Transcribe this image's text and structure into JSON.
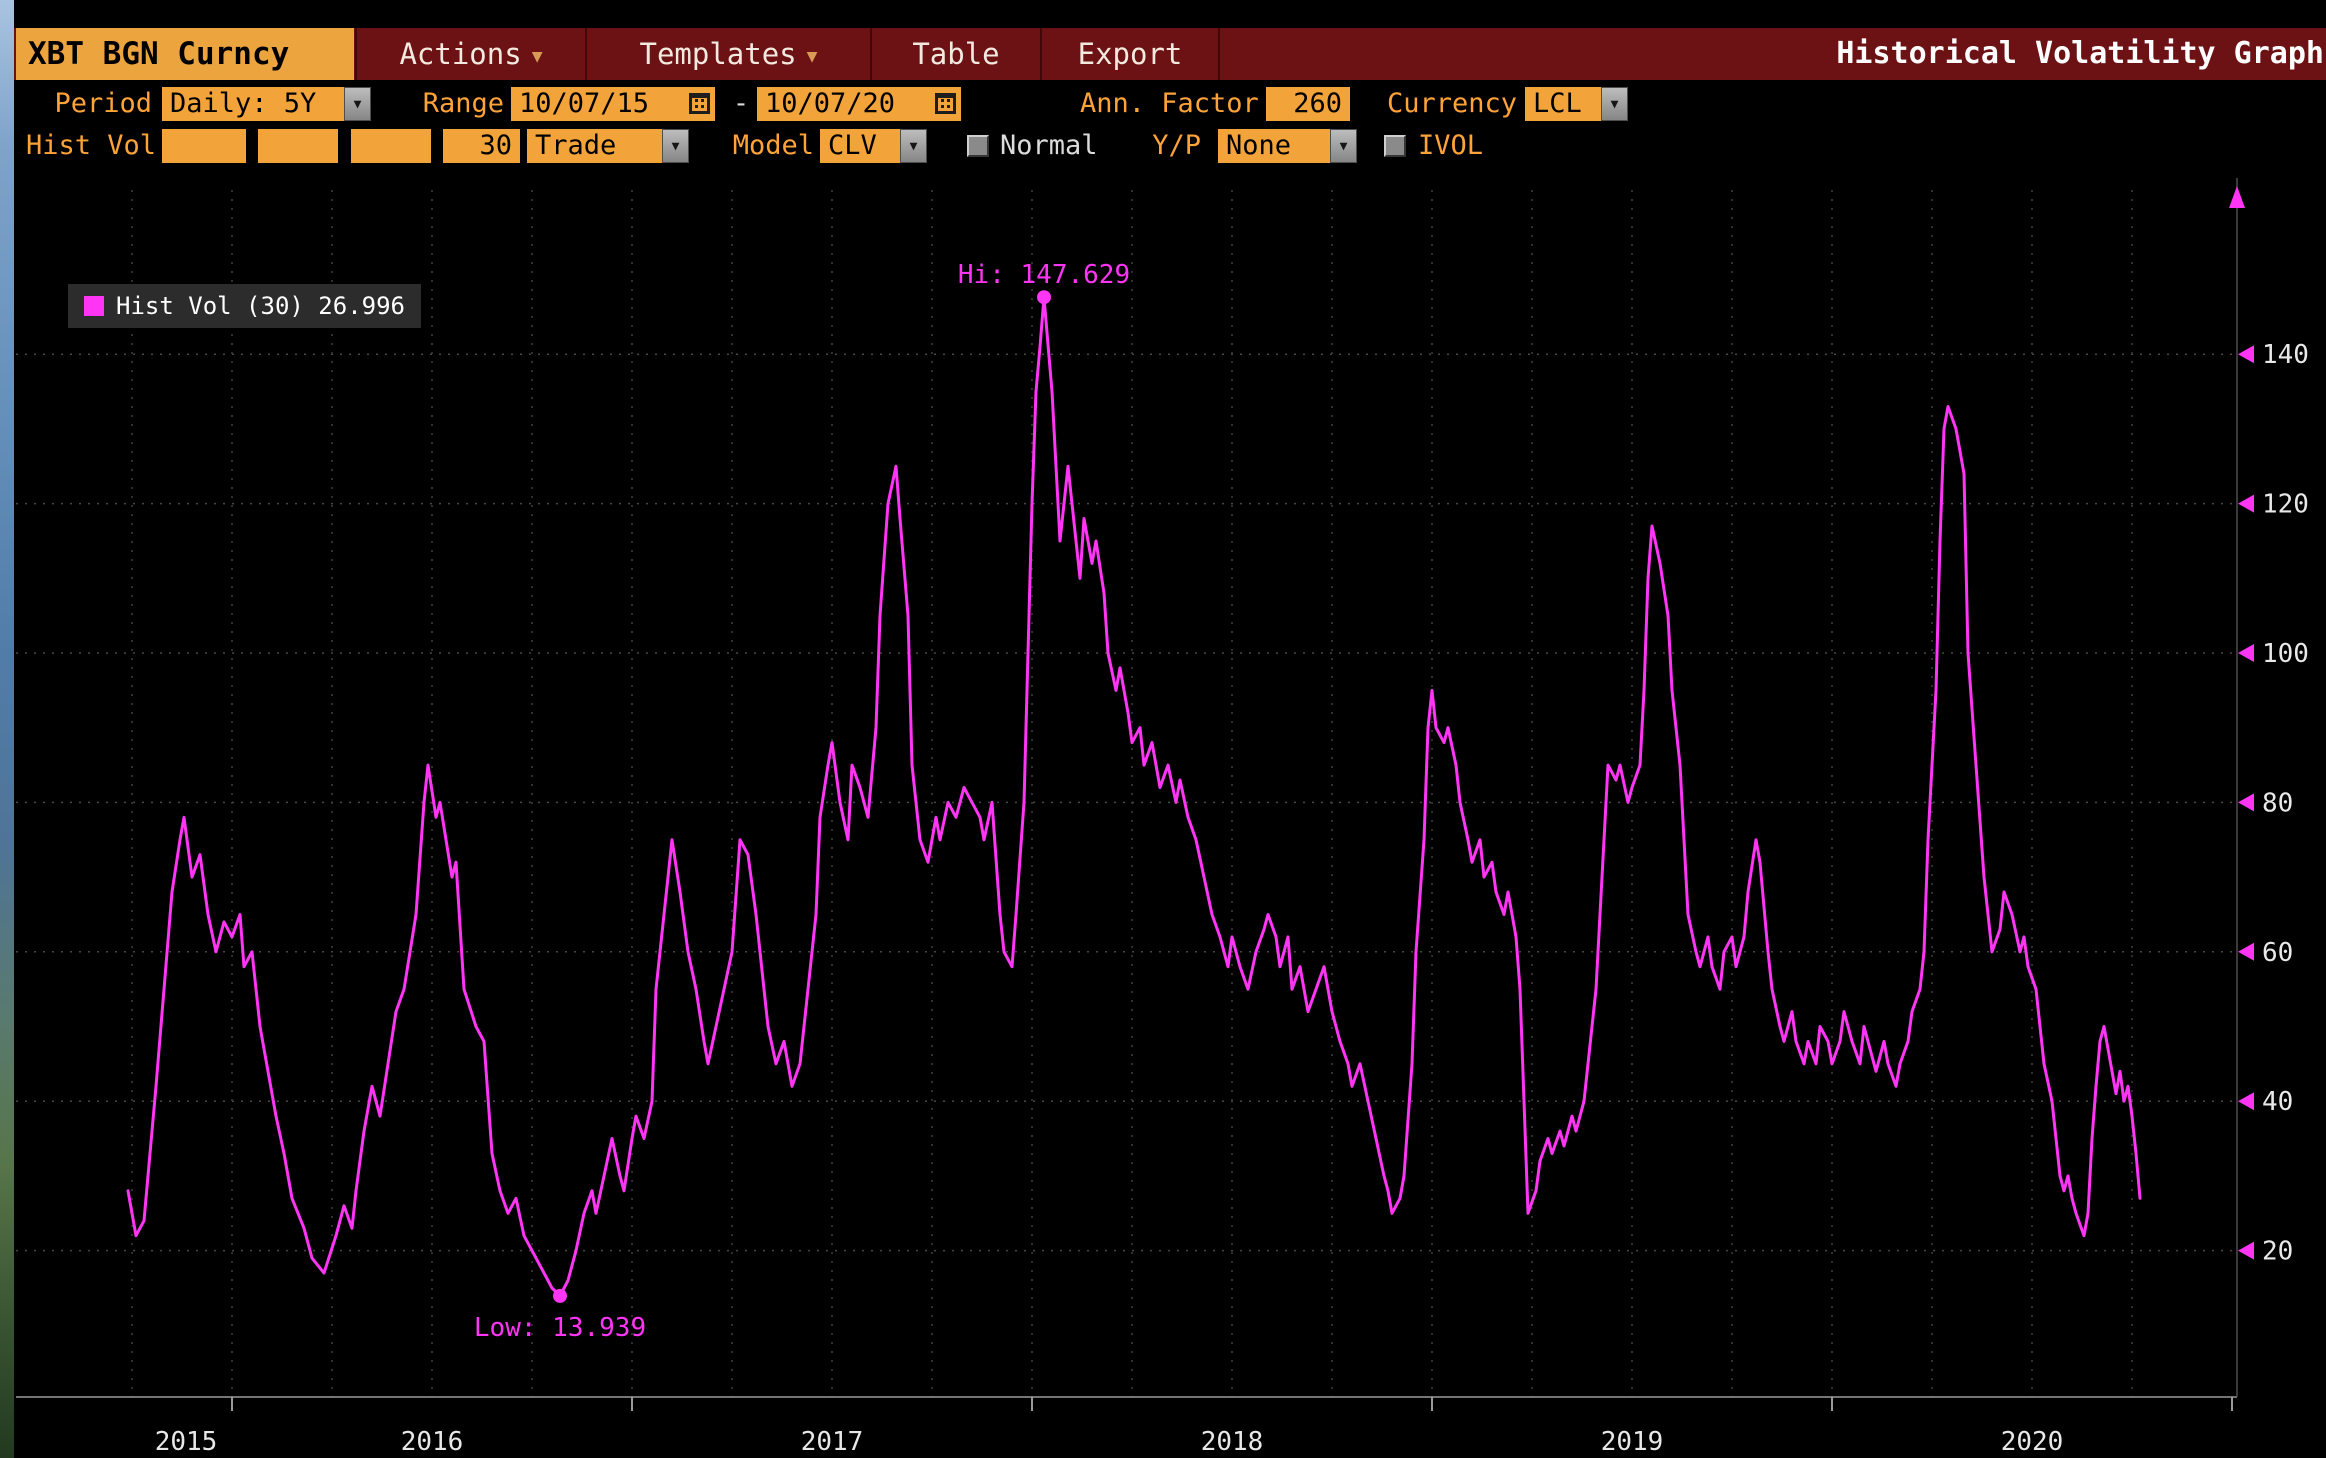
{
  "icons": {
    "caret": "▼"
  },
  "header": {
    "security": "XBT BGN Curncy",
    "menu_items": [
      {
        "label": "Actions",
        "caret": true
      },
      {
        "label": "Templates",
        "caret": true
      },
      {
        "label": "Table",
        "caret": false
      },
      {
        "label": "Export",
        "caret": false
      }
    ],
    "title": "Historical Volatility Graph"
  },
  "toolbar": {
    "period_label": "Period",
    "period_value": "Daily: 5Y",
    "range_label": "Range",
    "range_start": "10/07/15",
    "range_dash": "-",
    "range_end": "10/07/20",
    "ann_factor_label": "Ann. Factor",
    "ann_factor_value": "260",
    "currency_label": "Currency",
    "currency_value": "LCL",
    "hist_vol_label": "Hist Vol",
    "vol_window": "30",
    "price_source": "Trade",
    "model_label": "Model",
    "model_value": "CLV",
    "normal_label": "Normal",
    "yp_label": "Y/P",
    "yp_value": "None",
    "ivol_label": "IVOL"
  },
  "chart_data": {
    "type": "line",
    "title": "Historical Volatility Graph",
    "legend": "Hist Vol (30) 26.996",
    "series_name": "Hist Vol (30)",
    "last_value": 26.996,
    "line_color": "#ff35f5",
    "grid": true,
    "legend_position": "top-left",
    "ylim": [
      0,
      162
    ],
    "xlabel": "",
    "ylabel": "",
    "y_ticks": [
      20,
      40,
      60,
      80,
      100,
      120,
      140
    ],
    "x_labels": [
      {
        "label": "2015",
        "t": 2015.885
      },
      {
        "label": "2016",
        "t": 2016.5
      },
      {
        "label": "2017",
        "t": 2017.5
      },
      {
        "label": "2018",
        "t": 2018.5
      },
      {
        "label": "2019",
        "t": 2019.5
      },
      {
        "label": "2020",
        "t": 2020.5
      }
    ],
    "x_axis_tick_years": [
      2016,
      2017,
      2018,
      2019,
      2020,
      2021
    ],
    "hi": {
      "label": "Hi: 147.629",
      "t": 2018.03,
      "value": 147.629
    },
    "low": {
      "label": "Low: 13.939",
      "t": 2016.82,
      "value": 13.939
    },
    "points": [
      [
        2015.74,
        28
      ],
      [
        2015.75,
        25
      ],
      [
        2015.76,
        22
      ],
      [
        2015.78,
        24
      ],
      [
        2015.79,
        30
      ],
      [
        2015.81,
        42
      ],
      [
        2015.83,
        55
      ],
      [
        2015.85,
        68
      ],
      [
        2015.87,
        75
      ],
      [
        2015.88,
        78
      ],
      [
        2015.9,
        70
      ],
      [
        2015.92,
        73
      ],
      [
        2015.94,
        65
      ],
      [
        2015.96,
        60
      ],
      [
        2015.98,
        64
      ],
      [
        2016.0,
        62
      ],
      [
        2016.02,
        65
      ],
      [
        2016.03,
        58
      ],
      [
        2016.05,
        60
      ],
      [
        2016.07,
        50
      ],
      [
        2016.09,
        44
      ],
      [
        2016.11,
        38
      ],
      [
        2016.13,
        33
      ],
      [
        2016.15,
        27
      ],
      [
        2016.18,
        23
      ],
      [
        2016.2,
        19
      ],
      [
        2016.23,
        17
      ],
      [
        2016.26,
        22
      ],
      [
        2016.28,
        26
      ],
      [
        2016.3,
        23
      ],
      [
        2016.31,
        28
      ],
      [
        2016.33,
        36
      ],
      [
        2016.35,
        42
      ],
      [
        2016.37,
        38
      ],
      [
        2016.39,
        45
      ],
      [
        2016.41,
        52
      ],
      [
        2016.43,
        55
      ],
      [
        2016.46,
        65
      ],
      [
        2016.48,
        80
      ],
      [
        2016.49,
        85
      ],
      [
        2016.51,
        78
      ],
      [
        2016.52,
        80
      ],
      [
        2016.55,
        70
      ],
      [
        2016.56,
        72
      ],
      [
        2016.58,
        55
      ],
      [
        2016.61,
        50
      ],
      [
        2016.63,
        48
      ],
      [
        2016.65,
        33
      ],
      [
        2016.67,
        28
      ],
      [
        2016.69,
        25
      ],
      [
        2016.71,
        27
      ],
      [
        2016.73,
        22
      ],
      [
        2016.75,
        20
      ],
      [
        2016.77,
        18
      ],
      [
        2016.8,
        15
      ],
      [
        2016.82,
        13.939
      ],
      [
        2016.84,
        16
      ],
      [
        2016.86,
        20
      ],
      [
        2016.88,
        25
      ],
      [
        2016.9,
        28
      ],
      [
        2016.91,
        25
      ],
      [
        2016.93,
        30
      ],
      [
        2016.95,
        35
      ],
      [
        2016.97,
        30
      ],
      [
        2016.98,
        28
      ],
      [
        2017.0,
        35
      ],
      [
        2017.01,
        38
      ],
      [
        2017.03,
        35
      ],
      [
        2017.05,
        40
      ],
      [
        2017.06,
        55
      ],
      [
        2017.08,
        65
      ],
      [
        2017.1,
        75
      ],
      [
        2017.12,
        68
      ],
      [
        2017.14,
        60
      ],
      [
        2017.16,
        55
      ],
      [
        2017.18,
        48
      ],
      [
        2017.19,
        45
      ],
      [
        2017.21,
        50
      ],
      [
        2017.23,
        55
      ],
      [
        2017.25,
        60
      ],
      [
        2017.27,
        75
      ],
      [
        2017.29,
        73
      ],
      [
        2017.31,
        65
      ],
      [
        2017.33,
        55
      ],
      [
        2017.34,
        50
      ],
      [
        2017.36,
        45
      ],
      [
        2017.38,
        48
      ],
      [
        2017.4,
        42
      ],
      [
        2017.42,
        45
      ],
      [
        2017.44,
        55
      ],
      [
        2017.46,
        65
      ],
      [
        2017.47,
        78
      ],
      [
        2017.49,
        85
      ],
      [
        2017.5,
        88
      ],
      [
        2017.52,
        80
      ],
      [
        2017.54,
        75
      ],
      [
        2017.55,
        85
      ],
      [
        2017.57,
        82
      ],
      [
        2017.59,
        78
      ],
      [
        2017.61,
        90
      ],
      [
        2017.62,
        105
      ],
      [
        2017.64,
        120
      ],
      [
        2017.66,
        125
      ],
      [
        2017.67,
        118
      ],
      [
        2017.69,
        105
      ],
      [
        2017.7,
        85
      ],
      [
        2017.72,
        75
      ],
      [
        2017.74,
        72
      ],
      [
        2017.76,
        78
      ],
      [
        2017.77,
        75
      ],
      [
        2017.79,
        80
      ],
      [
        2017.81,
        78
      ],
      [
        2017.83,
        82
      ],
      [
        2017.85,
        80
      ],
      [
        2017.87,
        78
      ],
      [
        2017.88,
        75
      ],
      [
        2017.9,
        80
      ],
      [
        2017.92,
        65
      ],
      [
        2017.93,
        60
      ],
      [
        2017.95,
        58
      ],
      [
        2017.96,
        65
      ],
      [
        2017.98,
        80
      ],
      [
        2017.99,
        100
      ],
      [
        2018.0,
        120
      ],
      [
        2018.01,
        135
      ],
      [
        2018.02,
        141
      ],
      [
        2018.03,
        147.629
      ],
      [
        2018.05,
        135
      ],
      [
        2018.06,
        125
      ],
      [
        2018.07,
        115
      ],
      [
        2018.08,
        120
      ],
      [
        2018.09,
        125
      ],
      [
        2018.11,
        115
      ],
      [
        2018.12,
        110
      ],
      [
        2018.13,
        118
      ],
      [
        2018.15,
        112
      ],
      [
        2018.16,
        115
      ],
      [
        2018.18,
        108
      ],
      [
        2018.19,
        100
      ],
      [
        2018.21,
        95
      ],
      [
        2018.22,
        98
      ],
      [
        2018.24,
        92
      ],
      [
        2018.25,
        88
      ],
      [
        2018.27,
        90
      ],
      [
        2018.28,
        85
      ],
      [
        2018.3,
        88
      ],
      [
        2018.32,
        82
      ],
      [
        2018.34,
        85
      ],
      [
        2018.36,
        80
      ],
      [
        2018.37,
        83
      ],
      [
        2018.39,
        78
      ],
      [
        2018.41,
        75
      ],
      [
        2018.43,
        70
      ],
      [
        2018.45,
        65
      ],
      [
        2018.47,
        62
      ],
      [
        2018.49,
        58
      ],
      [
        2018.5,
        62
      ],
      [
        2018.52,
        58
      ],
      [
        2018.54,
        55
      ],
      [
        2018.56,
        60
      ],
      [
        2018.58,
        63
      ],
      [
        2018.59,
        65
      ],
      [
        2018.61,
        62
      ],
      [
        2018.62,
        58
      ],
      [
        2018.64,
        62
      ],
      [
        2018.65,
        55
      ],
      [
        2018.67,
        58
      ],
      [
        2018.69,
        52
      ],
      [
        2018.71,
        55
      ],
      [
        2018.73,
        58
      ],
      [
        2018.75,
        52
      ],
      [
        2018.77,
        48
      ],
      [
        2018.79,
        45
      ],
      [
        2018.8,
        42
      ],
      [
        2018.82,
        45
      ],
      [
        2018.84,
        40
      ],
      [
        2018.86,
        35
      ],
      [
        2018.88,
        30
      ],
      [
        2018.89,
        28
      ],
      [
        2018.9,
        25
      ],
      [
        2018.92,
        27
      ],
      [
        2018.93,
        30
      ],
      [
        2018.95,
        45
      ],
      [
        2018.96,
        60
      ],
      [
        2018.98,
        75
      ],
      [
        2018.99,
        90
      ],
      [
        2019.0,
        95
      ],
      [
        2019.01,
        90
      ],
      [
        2019.03,
        88
      ],
      [
        2019.04,
        90
      ],
      [
        2019.06,
        85
      ],
      [
        2019.07,
        80
      ],
      [
        2019.09,
        75
      ],
      [
        2019.1,
        72
      ],
      [
        2019.12,
        75
      ],
      [
        2019.13,
        70
      ],
      [
        2019.15,
        72
      ],
      [
        2019.16,
        68
      ],
      [
        2019.18,
        65
      ],
      [
        2019.19,
        68
      ],
      [
        2019.21,
        62
      ],
      [
        2019.22,
        55
      ],
      [
        2019.23,
        40
      ],
      [
        2019.24,
        25
      ],
      [
        2019.26,
        28
      ],
      [
        2019.27,
        32
      ],
      [
        2019.29,
        35
      ],
      [
        2019.3,
        33
      ],
      [
        2019.32,
        36
      ],
      [
        2019.33,
        34
      ],
      [
        2019.35,
        38
      ],
      [
        2019.36,
        36
      ],
      [
        2019.38,
        40
      ],
      [
        2019.39,
        45
      ],
      [
        2019.41,
        55
      ],
      [
        2019.42,
        65
      ],
      [
        2019.43,
        75
      ],
      [
        2019.44,
        85
      ],
      [
        2019.46,
        83
      ],
      [
        2019.47,
        85
      ],
      [
        2019.49,
        80
      ],
      [
        2019.5,
        82
      ],
      [
        2019.52,
        85
      ],
      [
        2019.53,
        95
      ],
      [
        2019.54,
        110
      ],
      [
        2019.55,
        117
      ],
      [
        2019.57,
        112
      ],
      [
        2019.59,
        105
      ],
      [
        2019.6,
        95
      ],
      [
        2019.62,
        85
      ],
      [
        2019.63,
        75
      ],
      [
        2019.64,
        65
      ],
      [
        2019.66,
        60
      ],
      [
        2019.67,
        58
      ],
      [
        2019.69,
        62
      ],
      [
        2019.7,
        58
      ],
      [
        2019.72,
        55
      ],
      [
        2019.73,
        60
      ],
      [
        2019.75,
        62
      ],
      [
        2019.76,
        58
      ],
      [
        2019.78,
        62
      ],
      [
        2019.79,
        68
      ],
      [
        2019.81,
        75
      ],
      [
        2019.82,
        72
      ],
      [
        2019.84,
        60
      ],
      [
        2019.85,
        55
      ],
      [
        2019.87,
        50
      ],
      [
        2019.88,
        48
      ],
      [
        2019.9,
        52
      ],
      [
        2019.91,
        48
      ],
      [
        2019.93,
        45
      ],
      [
        2019.94,
        48
      ],
      [
        2019.96,
        45
      ],
      [
        2019.97,
        50
      ],
      [
        2019.99,
        48
      ],
      [
        2020.0,
        45
      ],
      [
        2020.02,
        48
      ],
      [
        2020.03,
        52
      ],
      [
        2020.05,
        48
      ],
      [
        2020.07,
        45
      ],
      [
        2020.08,
        50
      ],
      [
        2020.1,
        46
      ],
      [
        2020.11,
        44
      ],
      [
        2020.13,
        48
      ],
      [
        2020.14,
        45
      ],
      [
        2020.16,
        42
      ],
      [
        2020.17,
        45
      ],
      [
        2020.19,
        48
      ],
      [
        2020.2,
        52
      ],
      [
        2020.22,
        55
      ],
      [
        2020.23,
        60
      ],
      [
        2020.24,
        75
      ],
      [
        2020.26,
        95
      ],
      [
        2020.27,
        115
      ],
      [
        2020.28,
        130
      ],
      [
        2020.29,
        133
      ],
      [
        2020.31,
        130
      ],
      [
        2020.33,
        124
      ],
      [
        2020.34,
        100
      ],
      [
        2020.36,
        85
      ],
      [
        2020.38,
        70
      ],
      [
        2020.4,
        60
      ],
      [
        2020.42,
        63
      ],
      [
        2020.43,
        68
      ],
      [
        2020.45,
        65
      ],
      [
        2020.47,
        60
      ],
      [
        2020.48,
        62
      ],
      [
        2020.49,
        58
      ],
      [
        2020.51,
        55
      ],
      [
        2020.52,
        50
      ],
      [
        2020.53,
        45
      ],
      [
        2020.55,
        40
      ],
      [
        2020.56,
        35
      ],
      [
        2020.57,
        30
      ],
      [
        2020.58,
        28
      ],
      [
        2020.59,
        30
      ],
      [
        2020.6,
        27
      ],
      [
        2020.61,
        25
      ],
      [
        2020.63,
        22
      ],
      [
        2020.64,
        25
      ],
      [
        2020.65,
        35
      ],
      [
        2020.66,
        42
      ],
      [
        2020.67,
        48
      ],
      [
        2020.68,
        50
      ],
      [
        2020.69,
        47
      ],
      [
        2020.7,
        44
      ],
      [
        2020.71,
        41
      ],
      [
        2020.72,
        44
      ],
      [
        2020.73,
        40
      ],
      [
        2020.74,
        42
      ],
      [
        2020.75,
        38
      ],
      [
        2020.76,
        33
      ],
      [
        2020.77,
        26.996
      ]
    ]
  }
}
